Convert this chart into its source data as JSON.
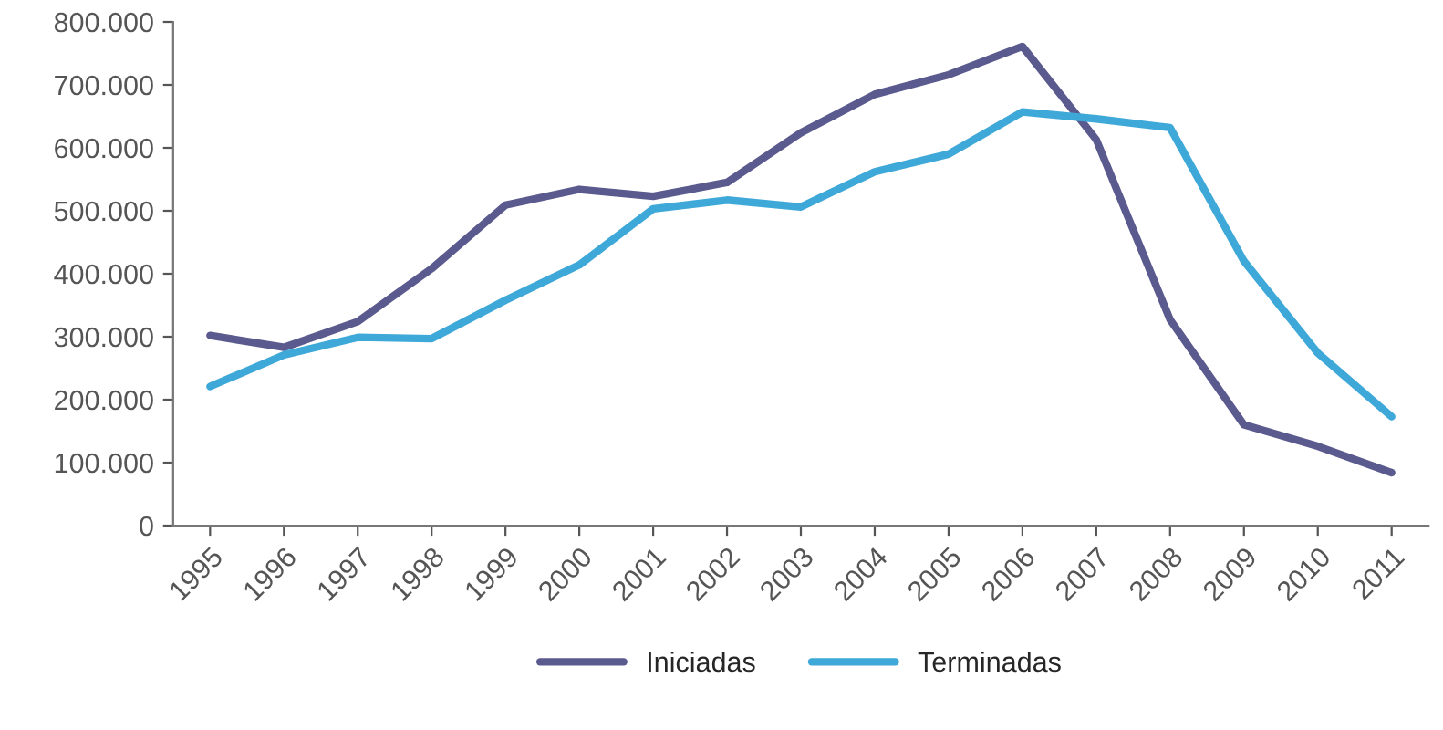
{
  "chart_data": {
    "type": "line",
    "categories": [
      "1995",
      "1996",
      "1997",
      "1998",
      "1999",
      "2000",
      "2001",
      "2002",
      "2003",
      "2004",
      "2005",
      "2006",
      "2007",
      "2008",
      "2009",
      "2010",
      "2011"
    ],
    "series": [
      {
        "name": "Iniciadas",
        "color": "#5a5a8e",
        "values": [
          302000,
          283000,
          324000,
          408000,
          509000,
          534000,
          523000,
          545000,
          624000,
          685000,
          716000,
          761000,
          613000,
          327000,
          160000,
          126000,
          84000
        ]
      },
      {
        "name": "Terminadas",
        "color": "#3ea8d8",
        "values": [
          221000,
          271000,
          299000,
          297000,
          358000,
          414000,
          503000,
          517000,
          506000,
          562000,
          590000,
          657000,
          646000,
          632000,
          420000,
          274000,
          173000
        ]
      }
    ],
    "ylim": [
      0,
      800000
    ],
    "yticks": [
      {
        "value": 0,
        "label": "0"
      },
      {
        "value": 100000,
        "label": "100.000"
      },
      {
        "value": 200000,
        "label": "200.000"
      },
      {
        "value": 300000,
        "label": "300.000"
      },
      {
        "value": 400000,
        "label": "400.000"
      },
      {
        "value": 500000,
        "label": "500.000"
      },
      {
        "value": 600000,
        "label": "600.000"
      },
      {
        "value": 700000,
        "label": "700.000"
      },
      {
        "value": 800000,
        "label": "800.000"
      }
    ],
    "grid": false,
    "legend": "bottom",
    "marker": "none",
    "line_style": "solid"
  }
}
